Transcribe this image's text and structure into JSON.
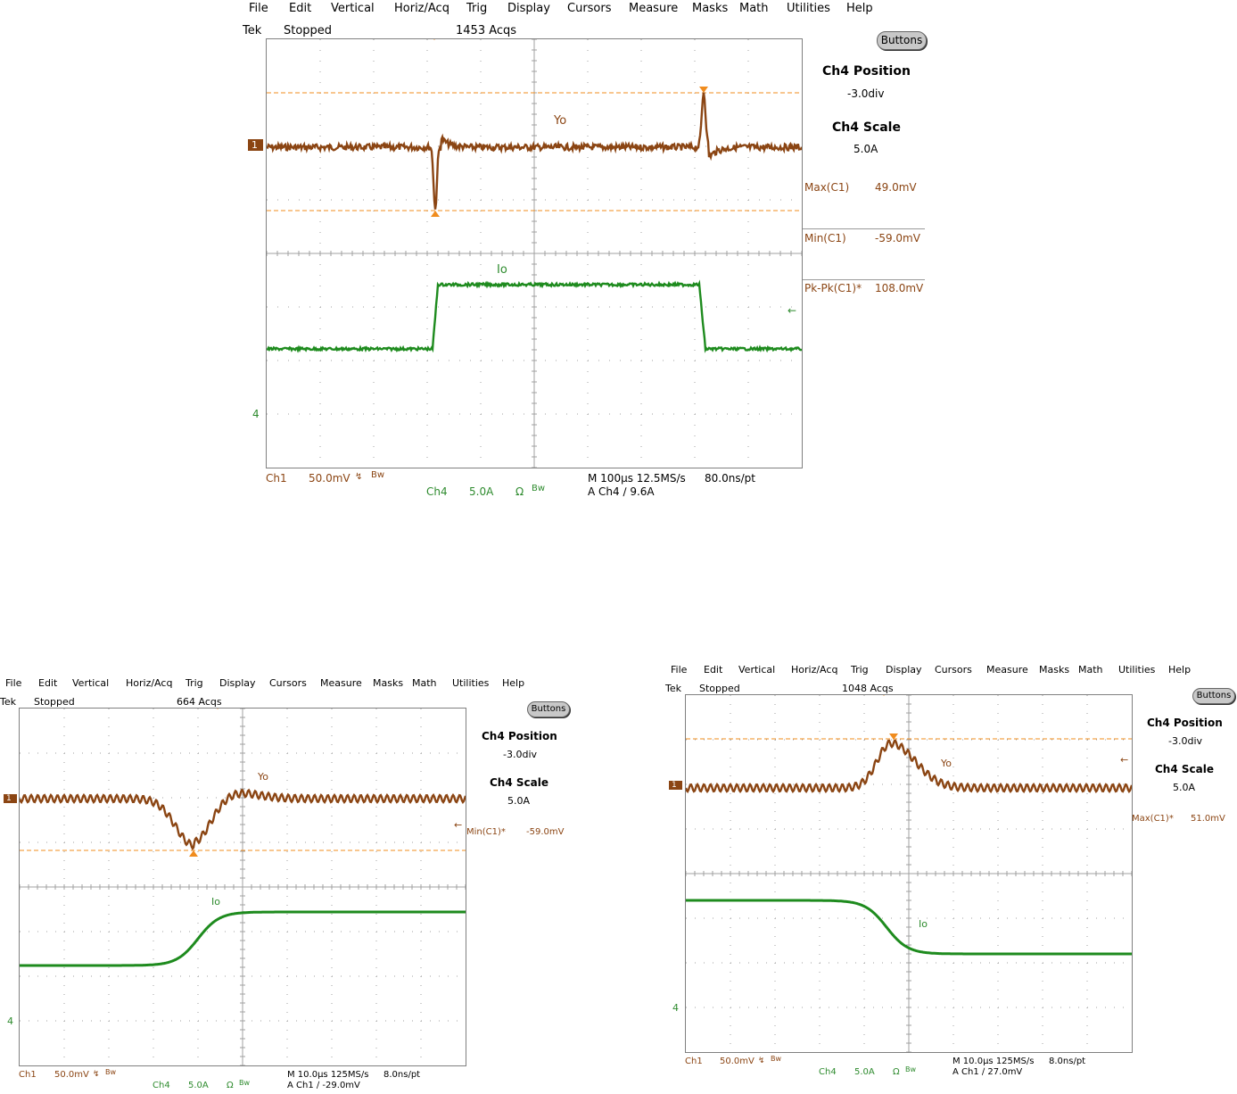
{
  "menu": [
    "File",
    "Edit",
    "Vertical",
    "Horiz/Acq",
    "Trig",
    "Display",
    "Cursors",
    "Measure",
    "Masks",
    "Math",
    "Utilities",
    "Help"
  ],
  "colors": {
    "ch1": "#8b4513",
    "ch4": "#1e8b1e",
    "trigger": "#f08c1e",
    "grid": "#a0a0a0"
  },
  "scopes": [
    {
      "status": {
        "brand": "Tek",
        "state": "Stopped",
        "acqs": "1453 Acqs"
      },
      "buttons_label": "Buttons",
      "side": {
        "pos_title": "Ch4 Position",
        "pos_value": "-3.0div",
        "scale_title": "Ch4 Scale",
        "scale_value": "5.0A"
      },
      "measurements": [
        {
          "name": "Max(C1)",
          "value": "49.0mV"
        },
        {
          "name": "Min(C1)",
          "value": "-59.0mV"
        },
        {
          "name": "Pk-Pk(C1)*",
          "value": "108.0mV"
        }
      ],
      "trace_labels": {
        "ch1": "Yo",
        "ch4": "Io"
      },
      "markers": {
        "ch1": "1",
        "ch4": "4"
      },
      "footer": {
        "ch1": "Ch1",
        "ch1_scale": "50.0mV",
        "ch1_bw": "Bw",
        "ch4": "Ch4",
        "ch4_scale": "5.0A",
        "ch4_bw": "Bw",
        "timebase": "M 100µs 12.5MS/s",
        "resolution": "80.0ns/pt",
        "trigger": "A  Ch4  ∕  9.6A"
      }
    },
    {
      "status": {
        "brand": "Tek",
        "state": "Stopped",
        "acqs": "664 Acqs"
      },
      "buttons_label": "Buttons",
      "side": {
        "pos_title": "Ch4 Position",
        "pos_value": "-3.0div",
        "scale_title": "Ch4 Scale",
        "scale_value": "5.0A"
      },
      "measurements": [
        {
          "name": "Min(C1)*",
          "value": "-59.0mV"
        }
      ],
      "trace_labels": {
        "ch1": "Yo",
        "ch4": "Io"
      },
      "markers": {
        "ch1": "1",
        "ch4": "4"
      },
      "footer": {
        "ch1": "Ch1",
        "ch1_scale": "50.0mV",
        "ch1_bw": "Bw",
        "ch4": "Ch4",
        "ch4_scale": "5.0A",
        "ch4_bw": "Bw",
        "timebase": "M 10.0µs 125MS/s",
        "resolution": "8.0ns/pt",
        "trigger": "A  Ch1  ∕  -29.0mV"
      }
    },
    {
      "status": {
        "brand": "Tek",
        "state": "Stopped",
        "acqs": "1048 Acqs"
      },
      "buttons_label": "Buttons",
      "side": {
        "pos_title": "Ch4 Position",
        "pos_value": "-3.0div",
        "scale_title": "Ch4 Scale",
        "scale_value": "5.0A"
      },
      "measurements": [
        {
          "name": "Max(C1)*",
          "value": "51.0mV"
        }
      ],
      "trace_labels": {
        "ch1": "Yo",
        "ch4": "Io"
      },
      "markers": {
        "ch1": "1",
        "ch4": "4"
      },
      "footer": {
        "ch1": "Ch1",
        "ch1_scale": "50.0mV",
        "ch1_bw": "Bw",
        "ch4": "Ch4",
        "ch4_scale": "5.0A",
        "ch4_bw": "Bw",
        "timebase": "M 10.0µs 125MS/s",
        "resolution": "8.0ns/pt",
        "trigger": "A  Ch1  ∕  27.0mV"
      }
    }
  ]
}
